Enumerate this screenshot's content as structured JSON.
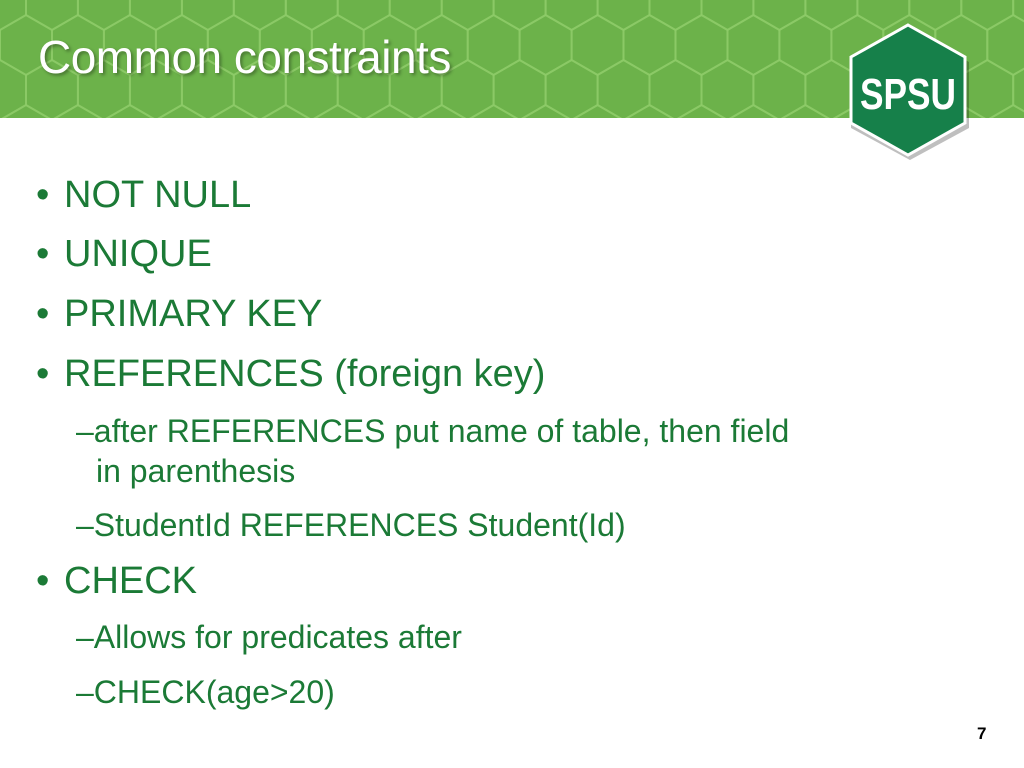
{
  "slide": {
    "title": "Common constraints",
    "logo_text": "SPSU",
    "page_number": "7",
    "bullet_char": "•",
    "bullets": [
      {
        "text": "NOT NULL"
      },
      {
        "text": "UNIQUE"
      },
      {
        "text": "PRIMARY KEY"
      },
      {
        "text": "REFERENCES (foreign key)"
      },
      {
        "text": "CHECK"
      }
    ],
    "sub_bullets": {
      "references": [
        {
          "line1": "–after REFERENCES put name of table, then field",
          "line2": "in parenthesis"
        },
        {
          "line1": "–StudentId REFERENCES Student(Id)"
        }
      ],
      "check": [
        {
          "line1": "–Allows for predicates after"
        },
        {
          "line1": "–CHECK(age>20)"
        }
      ]
    }
  },
  "colors": {
    "header_green": "#6cb24a",
    "hex_outline": "#8fcc6a",
    "text_green": "#1b7a36",
    "logo_green": "#16804a"
  }
}
